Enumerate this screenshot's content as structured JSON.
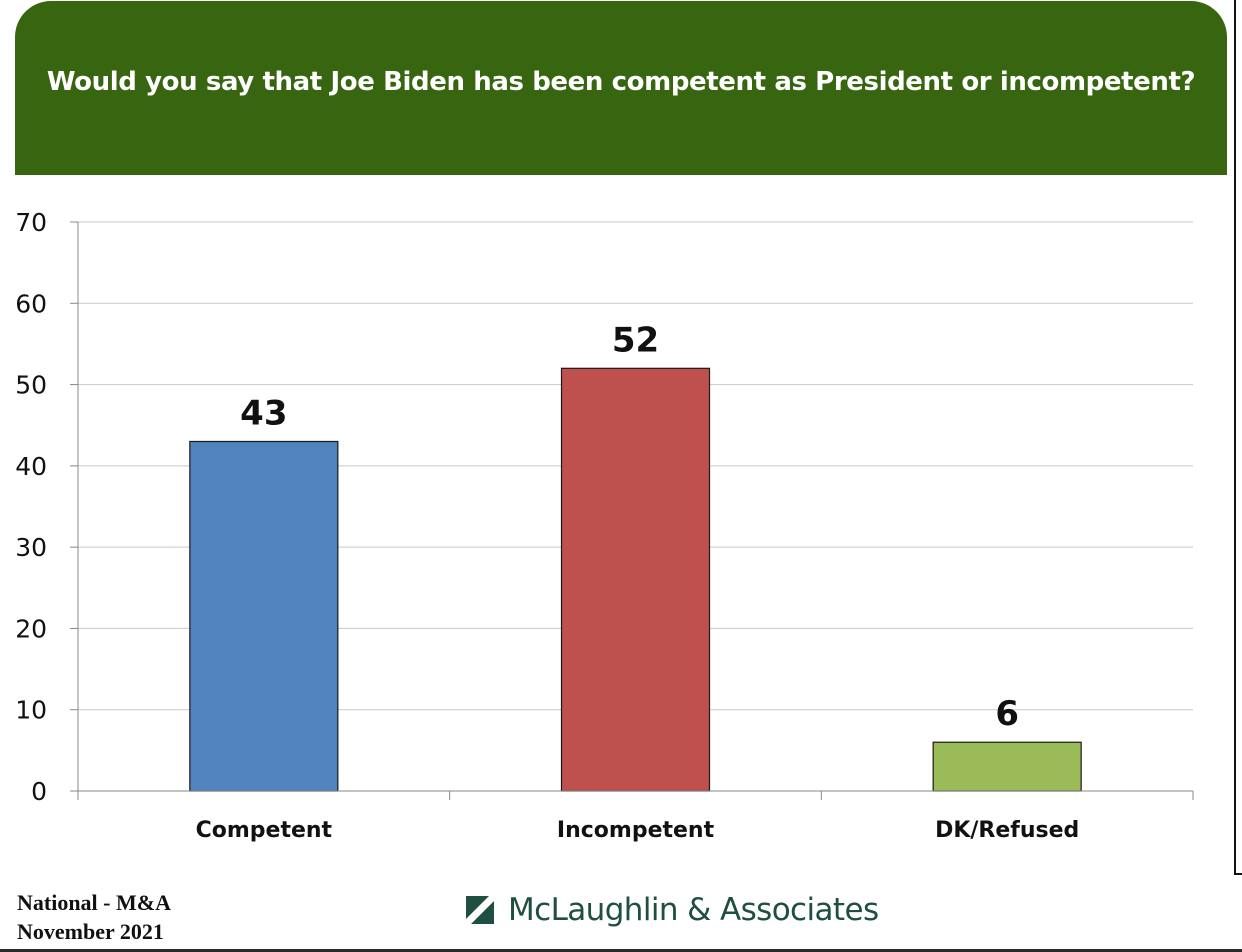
{
  "header": {
    "title": "Would you say that Joe Biden has been competent as President or incompetent?"
  },
  "chart_data": {
    "type": "bar",
    "title": "Would you say that Joe Biden has been competent as President or incompetent?",
    "categories": [
      "Competent",
      "Incompetent",
      "DK/Refused"
    ],
    "values": [
      43,
      52,
      6
    ],
    "colors": [
      "#5183BD",
      "#BE504E",
      "#9BBB59"
    ],
    "yticks": [
      "0",
      "10",
      "20",
      "30",
      "40",
      "50",
      "60",
      "70"
    ],
    "ylim": [
      0,
      70
    ],
    "xlabel": "",
    "ylabel": "",
    "grid": true,
    "legend": "none"
  },
  "footer": {
    "source_line1": "National - M&A",
    "source_line2": "November 2021",
    "brand": "McLaughlin & Associates",
    "brand_color": "#1f4f41"
  }
}
